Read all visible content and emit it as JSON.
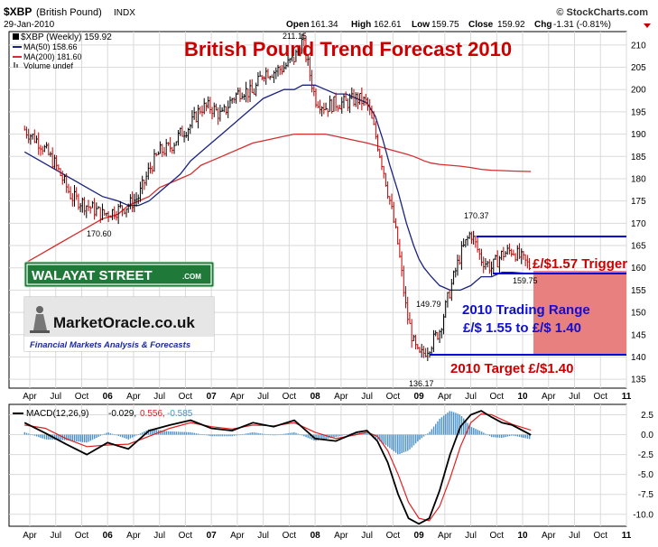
{
  "header": {
    "symbol": "$XBP",
    "name": "(British Pound)",
    "exchange": "INDX",
    "date": "29-Jan-2010",
    "source": "© StockCharts.com",
    "ohlc": {
      "open_label": "Open",
      "open": "161.34",
      "high_label": "High",
      "high": "162.61",
      "low_label": "Low",
      "low": "159.75",
      "close_label": "Close",
      "close": "159.92",
      "chg_label": "Chg",
      "chg": "-1.31 (-0.81%)"
    }
  },
  "legend": {
    "main": "$XBP (Weekly) 159.92",
    "ma50": "MA(50) 158.66",
    "ma200": "MA(200) 181.60",
    "volume": "Volume undef",
    "macd_prefix": "MACD(12,26,9)",
    "macd_v1": "-0.029,",
    "macd_v2": "0.556,",
    "macd_v3": "-0.585"
  },
  "annotations": {
    "title": "British Pound Trend Forecast 2010",
    "trigger": "£/$1.57 Trigger",
    "range_line1": "2010 Trading Range",
    "range_line2": "£/$ 1.55 to £/$ 1.40",
    "target": "2010 Target £/$1.40",
    "peak_label": "211.15",
    "low_2006_label": "170.60",
    "low_2009_label": "136.17",
    "rebound_label": "149.79",
    "high_2009_label": "170.37",
    "last_label": "159.75"
  },
  "logos": {
    "walayat": "WALAYAT STREET",
    "walayat_com": ".COM",
    "marketoracle": "MarketOracle.co.uk",
    "marketoracle_sub": "Financial Markets Analysis & Forecasts"
  },
  "colors": {
    "price": "#000000",
    "down_bar": "#c00000",
    "ma50": "#1a237e",
    "ma200": "#d32f2f",
    "title": "#cc0000",
    "blue_text": "#1010d0",
    "range_box": "#e88080",
    "macd_hist": "#4a90c8",
    "grid": "#d8d8d8"
  },
  "chart_data": [
    {
      "type": "line",
      "title": "British Pound Trend Forecast 2010",
      "series_note": "weekly OHLC approximated as close path",
      "x_ticks": [
        "Apr",
        "Jul",
        "Oct",
        "06",
        "Apr",
        "Jul",
        "Oct",
        "07",
        "Apr",
        "Jul",
        "Oct",
        "08",
        "Apr",
        "Jul",
        "Oct",
        "09",
        "Apr",
        "Jul",
        "Oct",
        "10",
        "Apr",
        "Jul",
        "Oct",
        "11"
      ],
      "y_ticks": [
        "135",
        "140",
        "145",
        "150",
        "155",
        "160",
        "165",
        "170",
        "175",
        "180",
        "185",
        "190",
        "195",
        "200",
        "205",
        "210"
      ],
      "ylim": [
        133,
        213
      ],
      "x": [
        2005.2,
        2005.35,
        2005.5,
        2005.65,
        2005.8,
        2005.95,
        2006.1,
        2006.2,
        2006.3,
        2006.4,
        2006.5,
        2006.6,
        2006.7,
        2006.8,
        2006.9,
        2007.0,
        2007.1,
        2007.2,
        2007.3,
        2007.4,
        2007.5,
        2007.6,
        2007.7,
        2007.8,
        2007.88,
        2008.0,
        2008.1,
        2008.2,
        2008.3,
        2008.4,
        2008.5,
        2008.58,
        2008.65,
        2008.72,
        2008.8,
        2008.88,
        2008.95,
        2009.0,
        2009.05,
        2009.12,
        2009.2,
        2009.3,
        2009.4,
        2009.5,
        2009.55,
        2009.6,
        2009.7,
        2009.8,
        2009.9,
        2010.08
      ],
      "series": [
        {
          "name": "$XBP (Weekly)",
          "values": [
            191,
            188,
            183,
            176,
            174,
            172,
            173,
            174,
            176,
            182,
            186,
            187,
            190,
            192,
            196,
            196,
            194,
            198,
            200,
            199,
            204,
            204,
            205,
            207,
            211,
            198,
            196,
            197,
            197,
            198,
            197,
            190,
            183,
            175,
            165,
            150,
            143,
            140,
            141,
            143,
            146,
            155,
            163,
            168,
            165,
            162,
            160,
            163,
            164,
            160
          ]
        },
        {
          "name": "MA(50)",
          "values": [
            186,
            184,
            182,
            180,
            178,
            176,
            175,
            174,
            174,
            175,
            177,
            179,
            181,
            184,
            186,
            188,
            190,
            192,
            194,
            196,
            198,
            199,
            200,
            200,
            201,
            201,
            200,
            199,
            199,
            198,
            197,
            194,
            189,
            183,
            177,
            170,
            165,
            162,
            160,
            158,
            156,
            155,
            155,
            156,
            157,
            158,
            158,
            159,
            159,
            158.66
          ]
        },
        {
          "name": "MA(200)",
          "values": [
            161,
            163,
            165,
            167,
            169,
            171,
            172,
            174,
            175,
            176,
            178,
            179,
            180,
            181,
            183,
            184,
            185,
            186,
            187,
            188,
            188.5,
            189,
            189.5,
            190,
            190,
            190,
            190,
            189.5,
            189,
            188.5,
            188,
            187.5,
            187,
            186.5,
            186,
            185.5,
            185,
            184.5,
            184,
            183.5,
            183.2,
            183,
            182.8,
            182.5,
            182.3,
            182.1,
            181.9,
            181.8,
            181.7,
            181.6
          ]
        }
      ],
      "levels": {
        "trigger": 157,
        "range_top": 155,
        "range_bottom": 140
      }
    },
    {
      "type": "line",
      "title": "MACD(12,26,9)",
      "y_ticks": [
        "-10.0",
        "-7.5",
        "-5.0",
        "-2.5",
        "0.0",
        "2.5"
      ],
      "ylim": [
        -11.5,
        3.8
      ],
      "x": [
        2005.2,
        2005.4,
        2005.6,
        2005.8,
        2006.0,
        2006.2,
        2006.4,
        2006.6,
        2006.8,
        2007.0,
        2007.2,
        2007.4,
        2007.6,
        2007.8,
        2008.0,
        2008.2,
        2008.4,
        2008.5,
        2008.6,
        2008.7,
        2008.8,
        2008.9,
        2009.0,
        2009.1,
        2009.2,
        2009.3,
        2009.4,
        2009.5,
        2009.6,
        2009.7,
        2009.8,
        2009.9,
        2010.08
      ],
      "series": [
        {
          "name": "MACD",
          "values": [
            1.5,
            0.2,
            -1.2,
            -2.5,
            -1.0,
            -1.8,
            0.5,
            1.2,
            1.8,
            0.8,
            0.5,
            1.5,
            1.0,
            1.8,
            -0.5,
            -0.8,
            0.3,
            0.5,
            -0.8,
            -3.5,
            -7.5,
            -10.5,
            -11.2,
            -10.5,
            -7.0,
            -2.5,
            1.0,
            2.5,
            3.0,
            2.2,
            1.5,
            1.2,
            -0.029
          ]
        },
        {
          "name": "Signal",
          "values": [
            1.2,
            0.8,
            -0.5,
            -1.5,
            -1.3,
            -1.2,
            -0.2,
            0.8,
            1.5,
            1.0,
            0.7,
            1.2,
            1.1,
            1.5,
            0.3,
            -0.5,
            0.0,
            0.3,
            -0.2,
            -2.0,
            -5.0,
            -8.5,
            -10.5,
            -10.8,
            -9.0,
            -5.5,
            -1.5,
            1.5,
            2.6,
            2.5,
            1.9,
            1.3,
            0.556
          ]
        },
        {
          "name": "Histogram",
          "values": [
            0.3,
            -0.6,
            -0.7,
            -1.0,
            0.3,
            -0.6,
            0.7,
            0.4,
            0.3,
            -0.2,
            -0.2,
            0.3,
            -0.1,
            0.3,
            -0.8,
            -0.3,
            0.3,
            0.2,
            -0.6,
            -1.5,
            -2.5,
            -2.0,
            -0.7,
            0.3,
            2.0,
            3.0,
            2.5,
            1.0,
            0.4,
            -0.3,
            -0.4,
            -0.1,
            -0.585
          ]
        }
      ]
    }
  ]
}
